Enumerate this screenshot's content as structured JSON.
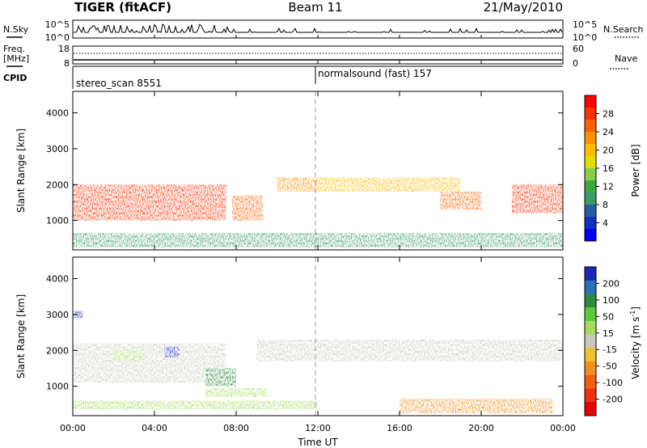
{
  "header": {
    "radar": "TIGER (fitACF)",
    "beam": "Beam 11",
    "date": "21/May/2010"
  },
  "top_panels": {
    "nsky_label": "N.Sky",
    "nsearch_label": "N.Search",
    "noise_ticks_left": [
      "10^5",
      "10^0"
    ],
    "noise_ticks_right": [
      "10^5",
      "10^0"
    ],
    "freq_label_line1": "Freq.",
    "freq_label_line2": "[MHz]",
    "freq_ticks": [
      "18",
      "8"
    ],
    "nave_label": "Nave",
    "nave_ticks": [
      "60",
      "0"
    ],
    "cpid_label": "CPID",
    "cpid_entries": [
      {
        "text": "stereo_scan 8551",
        "start_hour": 0
      },
      {
        "text": "normalsound (fast) 157",
        "start_hour": 12
      }
    ]
  },
  "x_axis": {
    "label": "Time UT",
    "tick_labels": [
      "00:00",
      "04:00",
      "08:00",
      "12:00",
      "16:00",
      "20:00",
      "00:00"
    ]
  },
  "y_axis": {
    "label": "Slant Range [km]",
    "tick_labels": [
      "4000",
      "3000",
      "2000",
      "1000"
    ]
  },
  "colorbars": {
    "power": {
      "label": "Power [dB]",
      "tick_labels": [
        "28",
        "24",
        "20",
        "16",
        "12",
        "8",
        "4"
      ],
      "colors": [
        "#ff0000",
        "#ff3000",
        "#ff6000",
        "#ff9000",
        "#ffbf00",
        "#e0e000",
        "#8ccd4a",
        "#3caa3c",
        "#3a9a6a",
        "#2060a0",
        "#1030c0",
        "#0000ff"
      ]
    },
    "velocity": {
      "label_main": "Velocity [m s",
      "label_sup": "-1",
      "label_end": "]",
      "tick_labels": [
        "200",
        "100",
        "50",
        "15",
        "-15",
        "-50",
        "-100",
        "-200"
      ],
      "colors": [
        "#1e28b4",
        "#2a70b8",
        "#2e8a3c",
        "#5dc83c",
        "#a4dc5c",
        "#c8c8c0",
        "#f0c030",
        "#f09020",
        "#f06010",
        "#f03010",
        "#e80000"
      ]
    }
  },
  "chart_data": [
    {
      "type": "heatmap",
      "title": "Power [dB]",
      "xlabel": "Time UT",
      "ylabel": "Slant Range [km]",
      "xlim": [
        0,
        24
      ],
      "ylim": [
        180,
        4600
      ],
      "clim": [
        0,
        32
      ],
      "regions": [
        {
          "t": [
            0,
            7.5
          ],
          "r": [
            1000,
            2000
          ],
          "level": 28
        },
        {
          "t": [
            7.8,
            9.3
          ],
          "r": [
            1000,
            1700
          ],
          "level": 26
        },
        {
          "t": [
            10,
            12
          ],
          "r": [
            1800,
            2200
          ],
          "level": 22
        },
        {
          "t": [
            12,
            19
          ],
          "r": [
            1800,
            2200
          ],
          "level": 20
        },
        {
          "t": [
            18,
            20
          ],
          "r": [
            1300,
            1800
          ],
          "level": 26
        },
        {
          "t": [
            21.5,
            24
          ],
          "r": [
            1200,
            2000
          ],
          "level": 28
        },
        {
          "t": [
            0,
            24
          ],
          "r": [
            250,
            650
          ],
          "level": 10
        }
      ]
    },
    {
      "type": "heatmap",
      "title": "Velocity",
      "xlabel": "Time UT",
      "ylabel": "Slant Range [km]",
      "xlim": [
        0,
        24
      ],
      "ylim": [
        180,
        4600
      ],
      "clim": [
        -200,
        200
      ],
      "regions": [
        {
          "t": [
            0,
            7.5
          ],
          "r": [
            1100,
            2200
          ],
          "level": 0
        },
        {
          "t": [
            9,
            24
          ],
          "r": [
            1700,
            2300
          ],
          "level": 0
        },
        {
          "t": [
            2,
            3.5
          ],
          "r": [
            1700,
            2000
          ],
          "level": 60
        },
        {
          "t": [
            4.5,
            5.2
          ],
          "r": [
            1800,
            2100
          ],
          "level": 200
        },
        {
          "t": [
            6.5,
            8
          ],
          "r": [
            1000,
            1500
          ],
          "level": 120
        },
        {
          "t": [
            6.5,
            9.5
          ],
          "r": [
            700,
            950
          ],
          "level": 40
        },
        {
          "t": [
            16,
            23.5
          ],
          "r": [
            250,
            650
          ],
          "level": -80
        },
        {
          "t": [
            0,
            12
          ],
          "r": [
            350,
            600
          ],
          "level": 30
        },
        {
          "t": [
            0,
            0.5
          ],
          "r": [
            2900,
            3100
          ],
          "level": 200
        }
      ]
    }
  ]
}
